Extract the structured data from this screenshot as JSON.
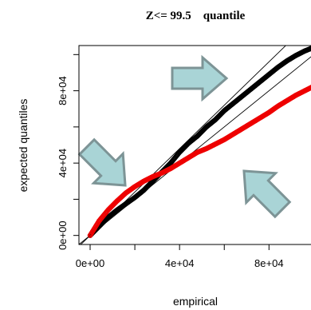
{
  "chart_data": {
    "type": "scatter",
    "title": "Z<= 99.5    quantile",
    "xlabel": "empirical",
    "ylabel": "expected quantiles",
    "xlim": [
      -5000,
      102000
    ],
    "ylim": [
      -5000,
      105000
    ],
    "x_ticks": [
      0,
      40000,
      80000
    ],
    "x_tick_labels": [
      "0e+00",
      "4e+04",
      "8e+04"
    ],
    "y_ticks": [
      0,
      40000,
      80000
    ],
    "y_tick_labels": [
      "0e+00",
      "4e+04",
      "8e+04"
    ],
    "grid": false,
    "legend": "none",
    "reference_lines": [
      {
        "name": "",
        "slope": 1.0,
        "color": "#000000"
      },
      {
        "name": "",
        "slope": 1.2,
        "color": "#000000"
      }
    ],
    "series": [
      {
        "color": "#000000",
        "marker": "open-circle",
        "x": [
          0,
          4000,
          8000,
          12000,
          16000,
          20000,
          24000,
          28000,
          32000,
          36000,
          40000,
          44000,
          48000,
          52000,
          56000,
          60000,
          64000,
          68000,
          72000,
          76000,
          80000,
          84000,
          88000,
          92000,
          96000,
          100000
        ],
        "y": [
          0,
          5000,
          10000,
          14000,
          17500,
          21000,
          25000,
          30000,
          35000,
          40000,
          46000,
          51000,
          55000,
          60000,
          64000,
          69000,
          73000,
          77000,
          81000,
          85000,
          89000,
          93000,
          96500,
          99500,
          102000,
          104000
        ]
      },
      {
        "color": "#ee0000",
        "marker": "open-circle",
        "x": [
          0,
          4000,
          8000,
          12000,
          16000,
          20000,
          24000,
          28000,
          32000,
          36000,
          40000,
          44000,
          48000,
          52000,
          56000,
          60000,
          64000,
          68000,
          72000,
          76000,
          80000,
          84000,
          88000,
          92000,
          96000,
          100000
        ],
        "y": [
          0,
          8000,
          14000,
          19000,
          23500,
          27000,
          30000,
          32500,
          34500,
          37000,
          40000,
          43000,
          46000,
          48000,
          50500,
          53000,
          56000,
          59000,
          62000,
          65000,
          68000,
          71500,
          74500,
          77500,
          80000,
          82500
        ]
      }
    ]
  },
  "annotations": {
    "arrow_color": "#a9d4d6",
    "arrow_stroke": "#7d9496",
    "arrows": [
      "upper-right-pointing",
      "lower-right-pointing",
      "upper-left-pointing"
    ]
  }
}
